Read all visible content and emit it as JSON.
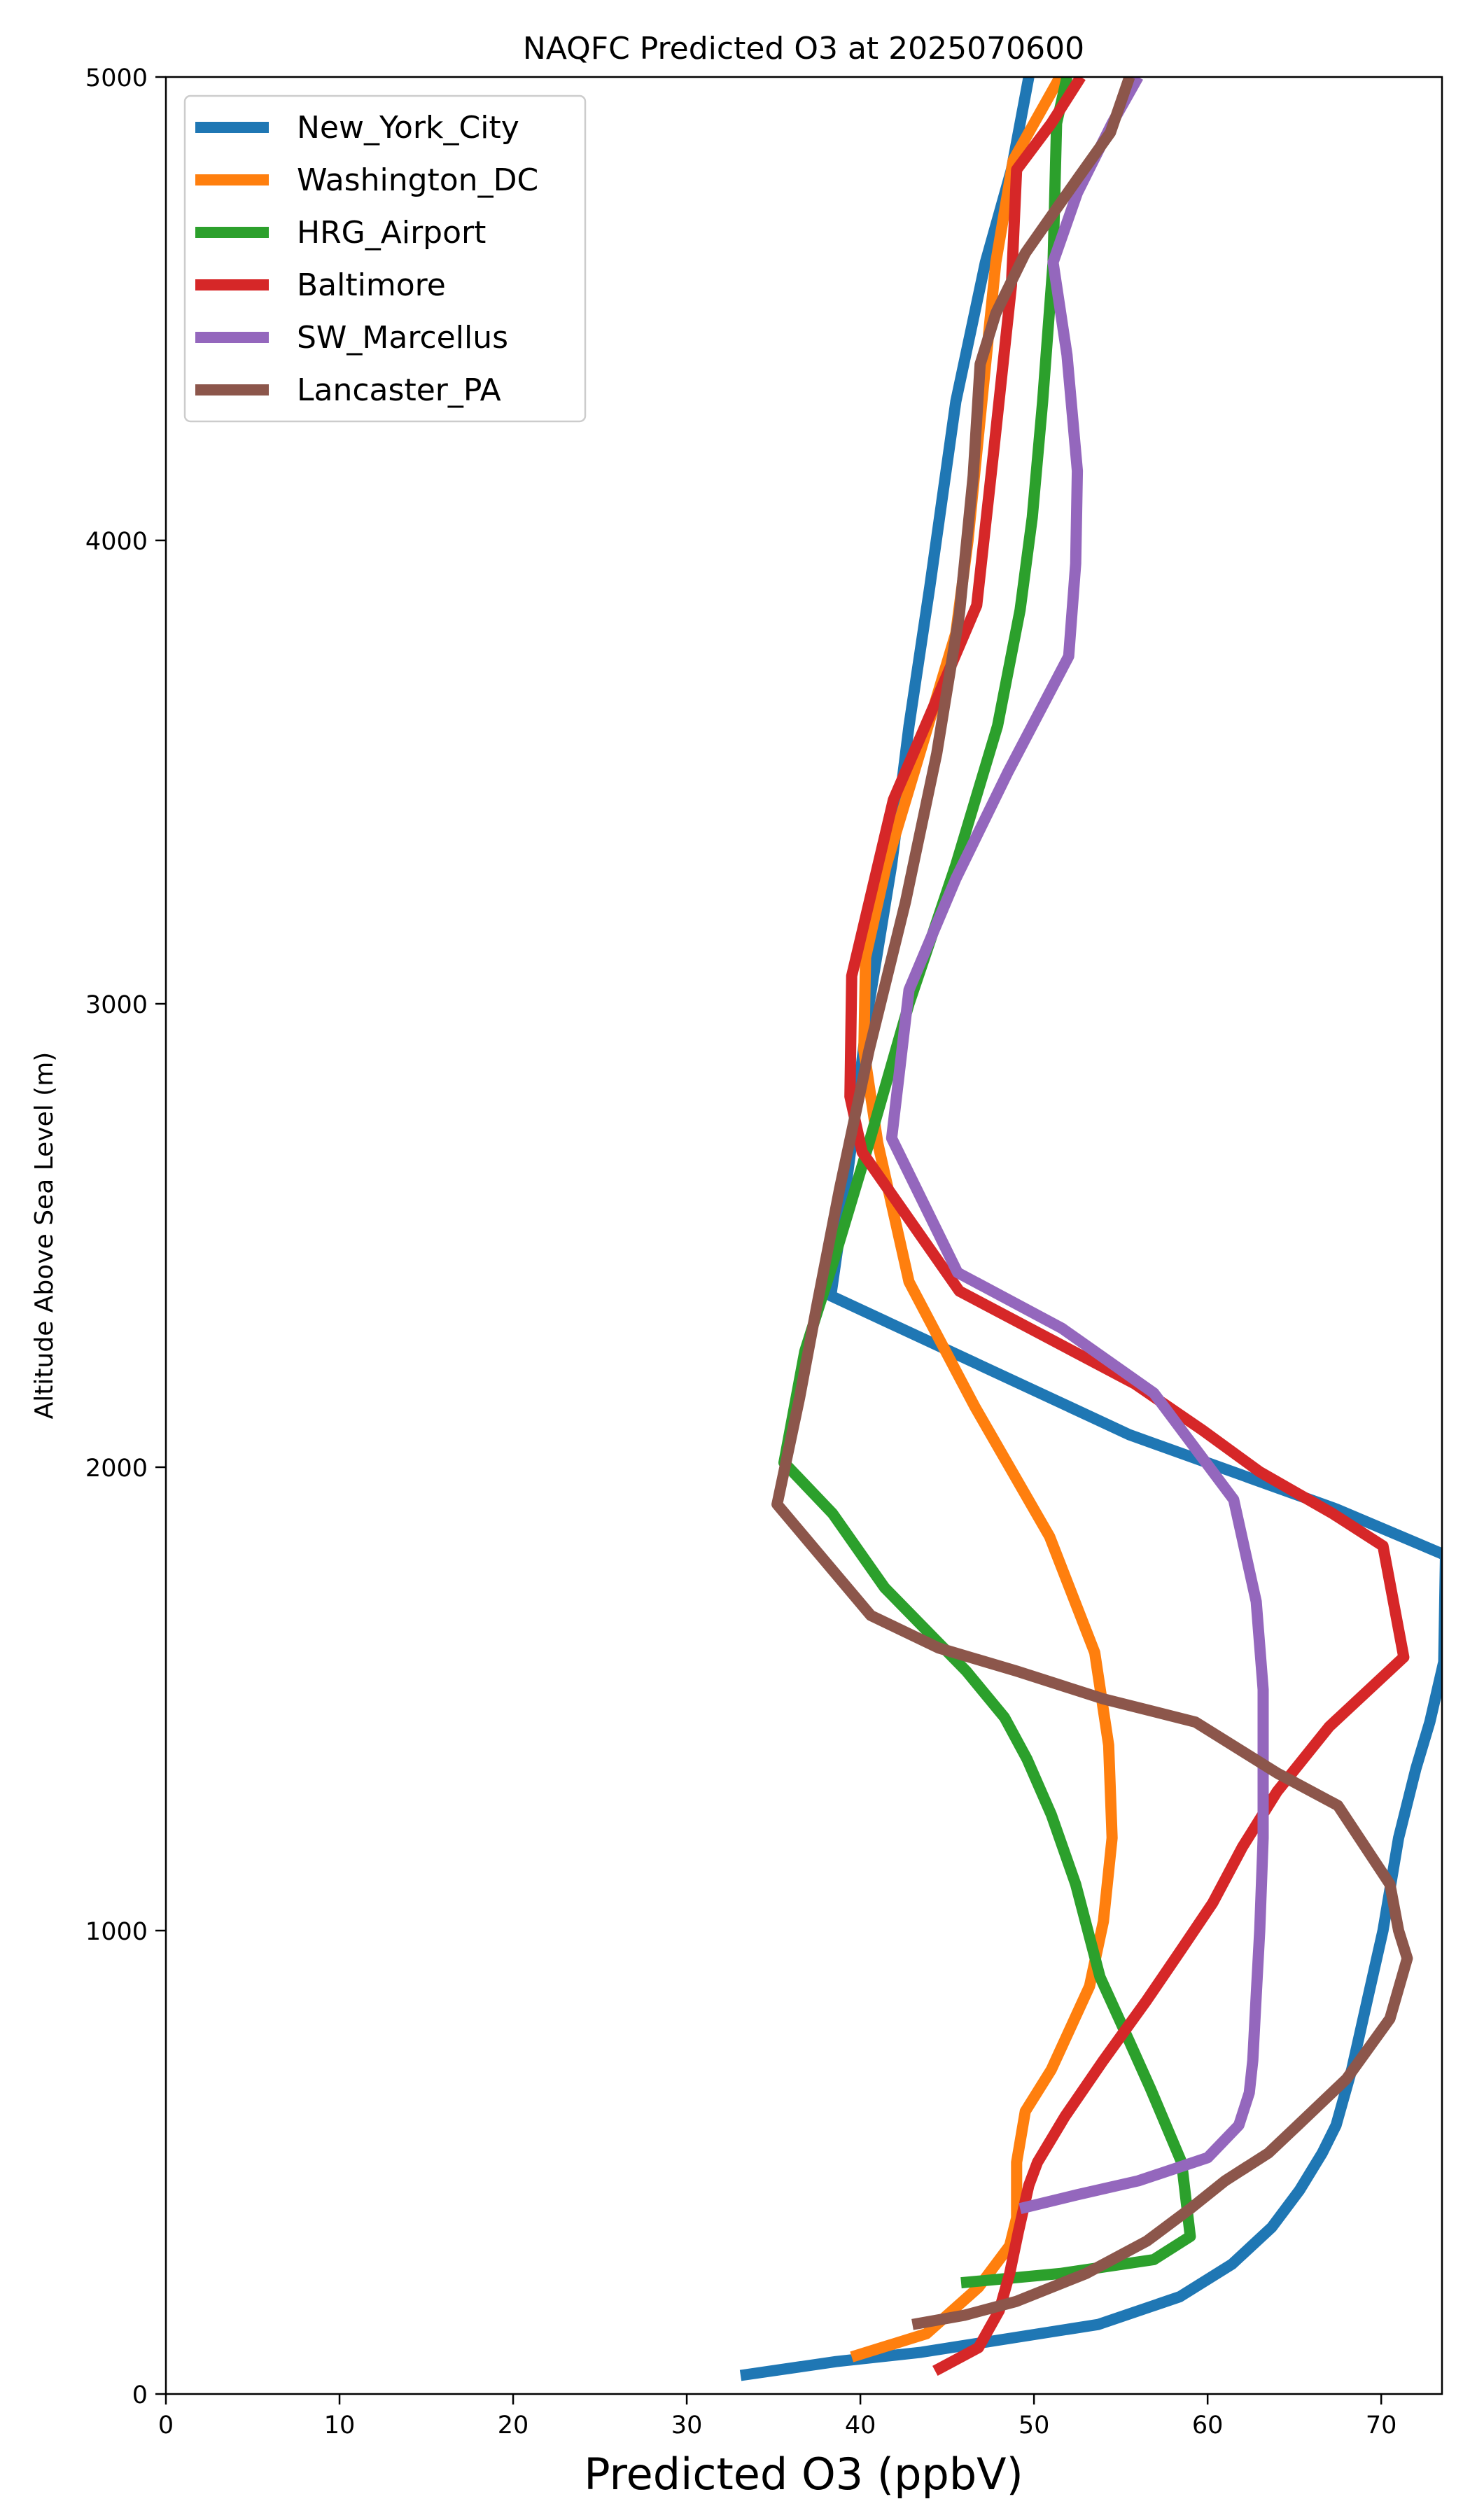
{
  "chart_data": {
    "type": "line",
    "title": "NAQFC Predicted O3 at 2025070600",
    "xlabel": "Predicted O3 (ppbV)",
    "ylabel": "Altitude Above Sea Level (m)",
    "xlim": [
      0,
      73.5
    ],
    "ylim": [
      0,
      5000
    ],
    "xticks": [
      0,
      10,
      20,
      30,
      40,
      50,
      60,
      70
    ],
    "yticks": [
      0,
      1000,
      2000,
      3000,
      4000,
      5000
    ],
    "grid": false,
    "legend_position": "upper left",
    "series": [
      {
        "name": "New_York_City",
        "color": "#1f77b4",
        "points": [
          [
            33.1,
            40
          ],
          [
            38.6,
            70
          ],
          [
            43.5,
            90
          ],
          [
            53.7,
            150
          ],
          [
            58.4,
            210
          ],
          [
            61.4,
            280
          ],
          [
            63.7,
            360
          ],
          [
            65.3,
            440
          ],
          [
            66.6,
            520
          ],
          [
            67.4,
            580
          ],
          [
            68.3,
            700
          ],
          [
            69.2,
            850
          ],
          [
            70.1,
            1000
          ],
          [
            71.0,
            1200
          ],
          [
            72.0,
            1350
          ],
          [
            72.8,
            1450
          ],
          [
            73.6,
            1580
          ],
          [
            73.7,
            1810
          ],
          [
            67.4,
            1910
          ],
          [
            55.5,
            2070
          ],
          [
            38.3,
            2370
          ],
          [
            38.8,
            2500
          ],
          [
            39.5,
            2700
          ],
          [
            40.5,
            3000
          ],
          [
            41.8,
            3300
          ],
          [
            42.8,
            3600
          ],
          [
            44.0,
            3900
          ],
          [
            45.5,
            4300
          ],
          [
            47.2,
            4600
          ],
          [
            48.7,
            4800
          ],
          [
            49.7,
            5000
          ]
        ]
      },
      {
        "name": "Washington_DC",
        "color": "#ff7f0e",
        "points": [
          [
            39.5,
            80
          ],
          [
            43.8,
            130
          ],
          [
            46.8,
            230
          ],
          [
            48.6,
            320
          ],
          [
            49.0,
            380
          ],
          [
            49.0,
            500
          ],
          [
            49.5,
            610
          ],
          [
            51.0,
            700
          ],
          [
            53.2,
            880
          ],
          [
            54.0,
            1020
          ],
          [
            54.5,
            1200
          ],
          [
            54.3,
            1400
          ],
          [
            53.5,
            1600
          ],
          [
            50.9,
            1850
          ],
          [
            46.6,
            2130
          ],
          [
            42.8,
            2400
          ],
          [
            41.0,
            2700
          ],
          [
            40.2,
            2900
          ],
          [
            40.3,
            3100
          ],
          [
            41.5,
            3300
          ],
          [
            43.5,
            3550
          ],
          [
            45.5,
            3800
          ],
          [
            46.2,
            4000
          ],
          [
            47.0,
            4300
          ],
          [
            47.8,
            4600
          ],
          [
            48.8,
            4820
          ],
          [
            50.0,
            4900
          ],
          [
            51.5,
            5000
          ]
        ]
      },
      {
        "name": "HRG_Airport",
        "color": "#2ca02c",
        "points": [
          [
            45.8,
            240
          ],
          [
            51.5,
            260
          ],
          [
            56.9,
            290
          ],
          [
            59.0,
            340
          ],
          [
            58.5,
            500
          ],
          [
            56.7,
            660
          ],
          [
            55.5,
            760
          ],
          [
            53.8,
            900
          ],
          [
            52.4,
            1100
          ],
          [
            51.0,
            1250
          ],
          [
            49.6,
            1370
          ],
          [
            48.3,
            1460
          ],
          [
            46.1,
            1560
          ],
          [
            41.4,
            1740
          ],
          [
            38.4,
            1900
          ],
          [
            35.6,
            2010
          ],
          [
            36.8,
            2250
          ],
          [
            38.5,
            2450
          ],
          [
            40.5,
            2700
          ],
          [
            42.8,
            3000
          ],
          [
            45.5,
            3300
          ],
          [
            47.9,
            3600
          ],
          [
            49.2,
            3850
          ],
          [
            49.9,
            4050
          ],
          [
            50.5,
            4300
          ],
          [
            51.1,
            4600
          ],
          [
            51.3,
            4900
          ],
          [
            51.9,
            5000
          ]
        ]
      },
      {
        "name": "Baltimore",
        "color": "#d62728",
        "points": [
          [
            44.3,
            50
          ],
          [
            46.8,
            100
          ],
          [
            48.0,
            180
          ],
          [
            48.6,
            260
          ],
          [
            49.1,
            350
          ],
          [
            49.7,
            450
          ],
          [
            50.2,
            500
          ],
          [
            51.8,
            600
          ],
          [
            54.0,
            720
          ],
          [
            56.5,
            850
          ],
          [
            58.5,
            960
          ],
          [
            60.3,
            1060
          ],
          [
            62.0,
            1180
          ],
          [
            64.0,
            1300
          ],
          [
            67.0,
            1440
          ],
          [
            71.3,
            1590
          ],
          [
            70.1,
            1830
          ],
          [
            67.2,
            1900
          ],
          [
            63.0,
            1990
          ],
          [
            59.7,
            2080
          ],
          [
            55.8,
            2180
          ],
          [
            45.7,
            2380
          ],
          [
            40.1,
            2680
          ],
          [
            39.4,
            2800
          ],
          [
            39.5,
            3060
          ],
          [
            41.9,
            3440
          ],
          [
            44.2,
            3640
          ],
          [
            46.7,
            3860
          ],
          [
            47.7,
            4200
          ],
          [
            48.7,
            4550
          ],
          [
            49.0,
            4800
          ],
          [
            51.0,
            4900
          ],
          [
            52.7,
            5000
          ]
        ]
      },
      {
        "name": "SW_Marcellus",
        "color": "#9467bd",
        "points": [
          [
            49.2,
            400
          ],
          [
            52.5,
            430
          ],
          [
            56.0,
            460
          ],
          [
            60.0,
            510
          ],
          [
            61.8,
            580
          ],
          [
            62.4,
            650
          ],
          [
            62.6,
            720
          ],
          [
            62.8,
            860
          ],
          [
            63.0,
            1000
          ],
          [
            63.2,
            1200
          ],
          [
            63.2,
            1390
          ],
          [
            63.2,
            1520
          ],
          [
            62.8,
            1710
          ],
          [
            61.5,
            1930
          ],
          [
            56.9,
            2160
          ],
          [
            51.6,
            2300
          ],
          [
            45.6,
            2420
          ],
          [
            41.8,
            2710
          ],
          [
            42.3,
            2870
          ],
          [
            42.8,
            3030
          ],
          [
            45.5,
            3270
          ],
          [
            48.5,
            3500
          ],
          [
            52.0,
            3750
          ],
          [
            52.4,
            3950
          ],
          [
            52.5,
            4150
          ],
          [
            51.9,
            4400
          ],
          [
            51.1,
            4600
          ],
          [
            52.5,
            4750
          ],
          [
            54.5,
            4900
          ],
          [
            56.0,
            5000
          ]
        ]
      },
      {
        "name": "Lancaster_PA",
        "color": "#8c564b",
        "points": [
          [
            43.0,
            150
          ],
          [
            46.0,
            170
          ],
          [
            49.0,
            200
          ],
          [
            53.0,
            260
          ],
          [
            56.5,
            330
          ],
          [
            59.0,
            400
          ],
          [
            61.0,
            460
          ],
          [
            63.5,
            520
          ],
          [
            65.2,
            580
          ],
          [
            68.0,
            680
          ],
          [
            70.5,
            810
          ],
          [
            71.5,
            940
          ],
          [
            71.0,
            1000
          ],
          [
            70.5,
            1100
          ],
          [
            67.5,
            1270
          ],
          [
            64.0,
            1340
          ],
          [
            59.3,
            1450
          ],
          [
            54.0,
            1500
          ],
          [
            49.0,
            1560
          ],
          [
            44.5,
            1610
          ],
          [
            40.6,
            1680
          ],
          [
            37.9,
            1800
          ],
          [
            35.2,
            1920
          ],
          [
            36.5,
            2150
          ],
          [
            37.5,
            2350
          ],
          [
            38.8,
            2600
          ],
          [
            40.5,
            2900
          ],
          [
            42.6,
            3220
          ],
          [
            44.4,
            3540
          ],
          [
            45.7,
            3840
          ],
          [
            46.5,
            4140
          ],
          [
            46.9,
            4380
          ],
          [
            47.8,
            4490
          ],
          [
            49.5,
            4620
          ],
          [
            52.5,
            4780
          ],
          [
            54.4,
            4880
          ],
          [
            55.5,
            5000
          ]
        ]
      }
    ]
  }
}
